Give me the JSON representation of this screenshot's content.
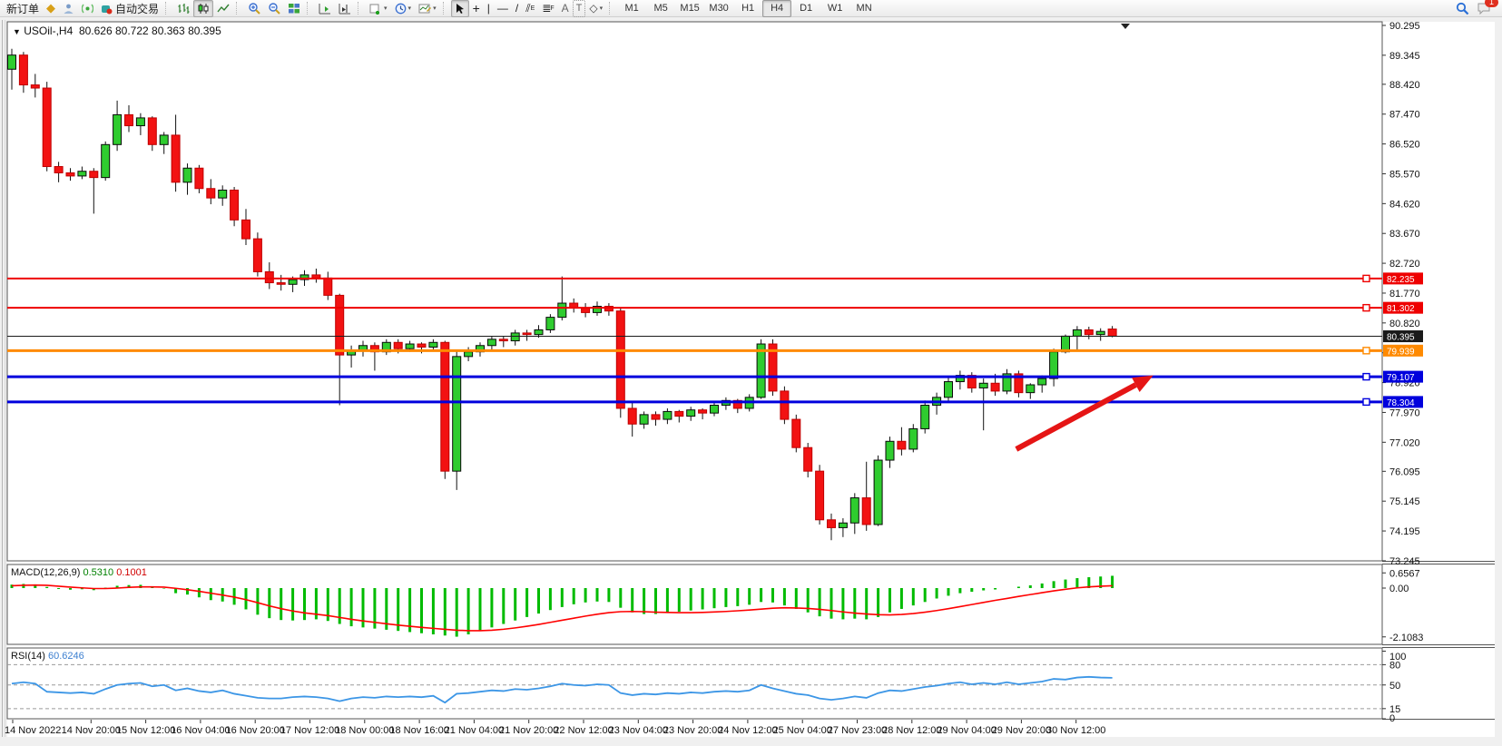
{
  "toolbar": {
    "new_order": "新订单",
    "auto_trading": "自动交易",
    "timeframes": [
      "M1",
      "M5",
      "M15",
      "M30",
      "H1",
      "H4",
      "D1",
      "W1",
      "MN"
    ],
    "active_timeframe": "H4",
    "notification_count": "1",
    "icon_glyphs": {
      "quotes": "◆",
      "crosshair": "+",
      "vertical-line": "|",
      "horizontal-line": "—",
      "trendline": "/",
      "equidistant-channel": "⫽",
      "fibonacci": "F",
      "text": "A",
      "text-label": "T",
      "objects": "◇",
      "dropdown": "▾"
    }
  },
  "chart_data": {
    "type": "candlestick",
    "title": {
      "symbol_period": "USOil-,H4",
      "ohlc": "80.626 80.722 80.363 80.395"
    },
    "ohlc_readout": {
      "open": 80.626,
      "high": 80.722,
      "low": 80.363,
      "close": 80.395
    },
    "price_axis_ticks": [
      "90.295",
      "89.345",
      "88.420",
      "87.470",
      "86.520",
      "85.570",
      "84.620",
      "83.670",
      "82.720",
      "81.770",
      "80.820",
      "79.870",
      "78.920",
      "77.970",
      "77.020",
      "76.095",
      "75.145",
      "74.195",
      "73.245"
    ],
    "x_labels": [
      "14 Nov 2022",
      "14 Nov 20:00",
      "15 Nov 12:00",
      "16 Nov 04:00",
      "16 Nov 20:00",
      "17 Nov 12:00",
      "18 Nov 00:00",
      "18 Nov 16:00",
      "21 Nov 04:00",
      "21 Nov 20:00",
      "22 Nov 12:00",
      "23 Nov 04:00",
      "23 Nov 20:00",
      "24 Nov 12:00",
      "25 Nov 04:00",
      "27 Nov 23:00",
      "28 Nov 12:00",
      "29 Nov 04:00",
      "29 Nov 20:00",
      "30 Nov 12:00"
    ],
    "levels": [
      {
        "price": 82.235,
        "label": "82.235",
        "color": "#ee0000",
        "width": 2
      },
      {
        "price": 81.302,
        "label": "81.302",
        "color": "#ee0000",
        "width": 2
      },
      {
        "price": 79.939,
        "label": "79.939",
        "color": "#ff8a00",
        "width": 3
      },
      {
        "price": 79.107,
        "label": "79.107",
        "color": "#0000dd",
        "width": 3
      },
      {
        "price": 78.304,
        "label": "78.304",
        "color": "#0000dd",
        "width": 3
      }
    ],
    "current_price": {
      "value": 80.395,
      "label": "80.395",
      "color": "#1a1a1a"
    },
    "annotation_arrow": {
      "from_bar": 85.8,
      "from_price": 76.8,
      "to_bar": 97.5,
      "to_price": 79.15,
      "color": "#e51515"
    },
    "bull_color": "#2fcc2f",
    "bear_color": "#f21212",
    "candles": [
      [
        88.9,
        89.55,
        88.25,
        89.35
      ],
      [
        89.35,
        89.45,
        88.15,
        88.4
      ],
      [
        88.4,
        88.75,
        88.0,
        88.3
      ],
      [
        88.3,
        88.5,
        85.65,
        85.8
      ],
      [
        85.8,
        85.95,
        85.3,
        85.6
      ],
      [
        85.6,
        85.75,
        85.35,
        85.5
      ],
      [
        85.5,
        85.8,
        85.4,
        85.65
      ],
      [
        85.65,
        85.75,
        84.3,
        85.45
      ],
      [
        85.45,
        86.6,
        85.35,
        86.5
      ],
      [
        86.5,
        87.9,
        86.3,
        87.45
      ],
      [
        87.45,
        87.75,
        86.9,
        87.1
      ],
      [
        87.1,
        87.5,
        86.8,
        87.35
      ],
      [
        87.35,
        87.4,
        86.3,
        86.5
      ],
      [
        86.5,
        86.9,
        86.2,
        86.8
      ],
      [
        86.8,
        87.45,
        85.0,
        85.3
      ],
      [
        85.3,
        85.9,
        84.9,
        85.75
      ],
      [
        85.75,
        85.85,
        84.95,
        85.1
      ],
      [
        85.1,
        85.4,
        84.6,
        84.8
      ],
      [
        84.8,
        85.2,
        84.55,
        85.05
      ],
      [
        85.05,
        85.15,
        83.9,
        84.1
      ],
      [
        84.1,
        84.45,
        83.3,
        83.5
      ],
      [
        83.5,
        83.7,
        82.3,
        82.45
      ],
      [
        82.45,
        82.75,
        81.9,
        82.1
      ],
      [
        82.1,
        82.35,
        81.85,
        82.05
      ],
      [
        82.05,
        82.3,
        81.8,
        82.2
      ],
      [
        82.2,
        82.5,
        82.0,
        82.35
      ],
      [
        82.35,
        82.55,
        82.1,
        82.25
      ],
      [
        82.25,
        82.45,
        81.55,
        81.7
      ],
      [
        81.7,
        81.75,
        78.2,
        79.8
      ],
      [
        79.8,
        80.1,
        79.4,
        79.95
      ],
      [
        79.95,
        80.25,
        79.75,
        80.1
      ],
      [
        80.1,
        80.2,
        79.3,
        79.9
      ],
      [
        79.9,
        80.3,
        79.8,
        80.2
      ],
      [
        80.2,
        80.3,
        79.85,
        80.0
      ],
      [
        80.0,
        80.25,
        79.9,
        80.15
      ],
      [
        80.15,
        80.2,
        79.85,
        80.05
      ],
      [
        80.05,
        80.3,
        79.95,
        80.2
      ],
      [
        80.2,
        80.25,
        75.85,
        76.1
      ],
      [
        76.1,
        79.95,
        75.5,
        79.75
      ],
      [
        79.75,
        80.05,
        79.6,
        79.9
      ],
      [
        79.9,
        80.2,
        79.75,
        80.1
      ],
      [
        80.1,
        80.4,
        79.95,
        80.3
      ],
      [
        80.3,
        80.4,
        80.05,
        80.25
      ],
      [
        80.25,
        80.6,
        80.1,
        80.5
      ],
      [
        80.5,
        80.6,
        80.25,
        80.45
      ],
      [
        80.45,
        80.75,
        80.35,
        80.6
      ],
      [
        80.6,
        81.1,
        80.5,
        81.0
      ],
      [
        81.0,
        82.3,
        80.9,
        81.45
      ],
      [
        81.45,
        81.6,
        81.15,
        81.3
      ],
      [
        81.3,
        81.45,
        81.0,
        81.15
      ],
      [
        81.15,
        81.5,
        81.05,
        81.35
      ],
      [
        81.35,
        81.45,
        81.05,
        81.2
      ],
      [
        81.2,
        81.3,
        77.8,
        78.1
      ],
      [
        78.1,
        78.3,
        77.2,
        77.6
      ],
      [
        77.6,
        78.0,
        77.45,
        77.9
      ],
      [
        77.9,
        78.0,
        77.55,
        77.75
      ],
      [
        77.75,
        78.1,
        77.6,
        78.0
      ],
      [
        78.0,
        78.05,
        77.65,
        77.85
      ],
      [
        77.85,
        78.15,
        77.7,
        78.05
      ],
      [
        78.05,
        78.1,
        77.75,
        77.95
      ],
      [
        77.95,
        78.3,
        77.85,
        78.2
      ],
      [
        78.2,
        78.45,
        78.05,
        78.35
      ],
      [
        78.35,
        78.4,
        77.95,
        78.1
      ],
      [
        78.1,
        78.55,
        78.0,
        78.45
      ],
      [
        78.45,
        80.3,
        78.4,
        80.15
      ],
      [
        80.15,
        80.3,
        78.5,
        78.65
      ],
      [
        78.65,
        78.8,
        77.6,
        77.75
      ],
      [
        77.75,
        77.9,
        76.7,
        76.85
      ],
      [
        76.85,
        77.0,
        75.9,
        76.1
      ],
      [
        76.1,
        76.3,
        74.4,
        74.55
      ],
      [
        74.55,
        74.75,
        73.9,
        74.3
      ],
      [
        74.3,
        74.6,
        74.0,
        74.45
      ],
      [
        74.45,
        75.4,
        74.1,
        75.25
      ],
      [
        75.25,
        76.4,
        74.2,
        74.4
      ],
      [
        74.4,
        76.6,
        74.35,
        76.45
      ],
      [
        76.45,
        77.2,
        76.2,
        77.05
      ],
      [
        77.05,
        77.5,
        76.6,
        76.8
      ],
      [
        76.8,
        77.6,
        76.7,
        77.45
      ],
      [
        77.45,
        78.35,
        77.3,
        78.2
      ],
      [
        78.2,
        78.6,
        77.9,
        78.45
      ],
      [
        78.45,
        79.1,
        78.3,
        78.95
      ],
      [
        78.95,
        79.3,
        78.7,
        79.15
      ],
      [
        79.15,
        79.25,
        78.6,
        78.75
      ],
      [
        78.75,
        79.05,
        77.4,
        78.9
      ],
      [
        78.9,
        79.2,
        78.5,
        78.65
      ],
      [
        78.65,
        79.35,
        78.55,
        79.2
      ],
      [
        79.2,
        79.3,
        78.45,
        78.6
      ],
      [
        78.6,
        78.9,
        78.4,
        78.85
      ],
      [
        78.85,
        79.15,
        78.6,
        79.05
      ],
      [
        79.05,
        80.0,
        78.8,
        79.9
      ],
      [
        79.9,
        80.45,
        79.85,
        80.4
      ],
      [
        80.4,
        80.72,
        79.95,
        80.6
      ],
      [
        80.6,
        80.7,
        80.3,
        80.45
      ],
      [
        80.45,
        80.65,
        80.25,
        80.55
      ],
      [
        80.626,
        80.722,
        80.363,
        80.395
      ]
    ],
    "macd": {
      "name": "MACD(12,26,9)",
      "value": "0.5310",
      "signal_value": "0.1001",
      "axis_ticks": [
        {
          "v": 0.6567,
          "label": "0.6567"
        },
        {
          "v": 0.0,
          "label": "0.00"
        },
        {
          "v": -2.1083,
          "label": "-2.1083"
        }
      ],
      "hist_color": "#00bb00",
      "signal_color": "#ff0000",
      "histogram": [
        0.15,
        0.18,
        0.16,
        0.05,
        -0.04,
        -0.07,
        -0.05,
        -0.09,
        0.02,
        0.1,
        0.13,
        0.14,
        0.05,
        -0.02,
        -0.22,
        -0.28,
        -0.4,
        -0.52,
        -0.58,
        -0.72,
        -0.92,
        -1.15,
        -1.3,
        -1.38,
        -1.4,
        -1.38,
        -1.35,
        -1.42,
        -1.55,
        -1.65,
        -1.7,
        -1.75,
        -1.8,
        -1.85,
        -1.9,
        -1.95,
        -2.0,
        -2.05,
        -2.1,
        -2.0,
        -1.85,
        -1.7,
        -1.55,
        -1.4,
        -1.25,
        -1.1,
        -0.95,
        -0.82,
        -0.7,
        -0.62,
        -0.58,
        -0.6,
        -0.85,
        -1.05,
        -1.12,
        -1.12,
        -1.08,
        -1.02,
        -0.97,
        -0.92,
        -0.87,
        -0.82,
        -0.78,
        -0.72,
        -0.6,
        -0.62,
        -0.75,
        -0.9,
        -1.05,
        -1.22,
        -1.32,
        -1.35,
        -1.32,
        -1.35,
        -1.25,
        -1.05,
        -0.9,
        -0.75,
        -0.6,
        -0.45,
        -0.33,
        -0.22,
        -0.16,
        -0.1,
        -0.06,
        0.0,
        0.06,
        0.12,
        0.2,
        0.3,
        0.37,
        0.43,
        0.47,
        0.5,
        0.531
      ],
      "signal": [
        0.1,
        0.12,
        0.13,
        0.12,
        0.08,
        0.04,
        0.01,
        -0.02,
        -0.02,
        0.0,
        0.03,
        0.05,
        0.05,
        0.04,
        -0.01,
        -0.07,
        -0.14,
        -0.22,
        -0.3,
        -0.39,
        -0.5,
        -0.63,
        -0.77,
        -0.89,
        -0.99,
        -1.07,
        -1.13,
        -1.19,
        -1.27,
        -1.35,
        -1.42,
        -1.48,
        -1.54,
        -1.6,
        -1.65,
        -1.7,
        -1.74,
        -1.78,
        -1.82,
        -1.84,
        -1.84,
        -1.82,
        -1.78,
        -1.72,
        -1.65,
        -1.57,
        -1.48,
        -1.39,
        -1.3,
        -1.21,
        -1.13,
        -1.06,
        -1.02,
        -1.01,
        -1.02,
        -1.04,
        -1.05,
        -1.06,
        -1.06,
        -1.05,
        -1.03,
        -1.01,
        -0.98,
        -0.95,
        -0.91,
        -0.87,
        -0.85,
        -0.86,
        -0.88,
        -0.92,
        -0.97,
        -1.03,
        -1.08,
        -1.12,
        -1.15,
        -1.16,
        -1.14,
        -1.1,
        -1.04,
        -0.97,
        -0.89,
        -0.8,
        -0.71,
        -0.62,
        -0.53,
        -0.45,
        -0.36,
        -0.28,
        -0.2,
        -0.12,
        -0.05,
        0.01,
        0.05,
        0.08,
        0.1001
      ]
    },
    "rsi": {
      "name": "RSI(14)",
      "value": "60.6246",
      "color": "#3c96e6",
      "axis_ticks": [
        {
          "v": 100,
          "label": "100"
        },
        {
          "v": 80,
          "label": "80"
        },
        {
          "v": 50,
          "label": "50"
        },
        {
          "v": 15,
          "label": "15"
        },
        {
          "v": 0,
          "label": "0"
        }
      ],
      "levels": [
        80,
        50,
        15
      ],
      "series": [
        52,
        54,
        52,
        40,
        39,
        38,
        39,
        37,
        44,
        50,
        52,
        53,
        48,
        50,
        42,
        45,
        41,
        39,
        42,
        37,
        34,
        31,
        30,
        30,
        32,
        33,
        32,
        30,
        26,
        30,
        32,
        31,
        33,
        32,
        33,
        32,
        34,
        24,
        37,
        38,
        40,
        42,
        41,
        44,
        43,
        45,
        48,
        52,
        50,
        49,
        51,
        50,
        38,
        35,
        37,
        36,
        38,
        37,
        39,
        38,
        40,
        41,
        40,
        42,
        50,
        45,
        41,
        37,
        35,
        30,
        28,
        30,
        33,
        31,
        38,
        42,
        41,
        44,
        47,
        49,
        52,
        54,
        51,
        53,
        51,
        54,
        51,
        53,
        55,
        59,
        58,
        61,
        62,
        61,
        60.62
      ]
    }
  }
}
